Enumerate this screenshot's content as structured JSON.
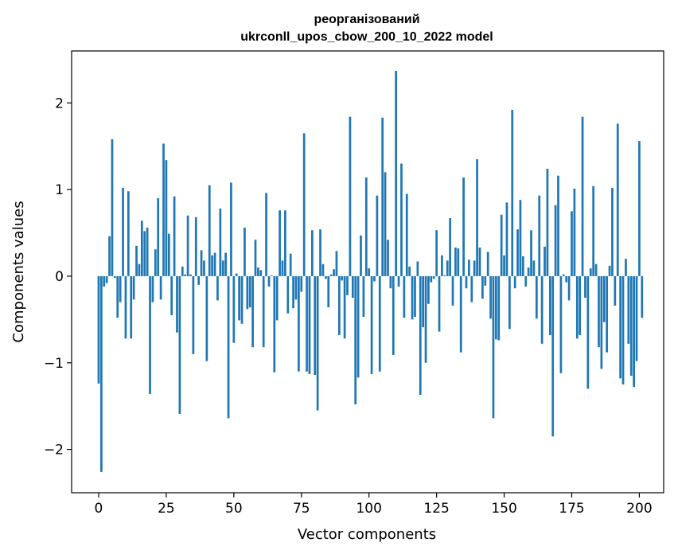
{
  "chart_data": {
    "type": "bar",
    "title_line1": "реорганізований",
    "title_line2": "ukrconll_upos_cbow_200_10_2022 model",
    "xlabel": "Vector components",
    "ylabel": "Components values",
    "xlim": [
      -10,
      209
    ],
    "ylim": [
      -2.5,
      2.6
    ],
    "xticks": [
      0,
      25,
      50,
      75,
      100,
      125,
      150,
      175,
      200
    ],
    "xtick_labels": [
      "0",
      "25",
      "50",
      "75",
      "100",
      "125",
      "150",
      "175",
      "200"
    ],
    "yticks": [
      -2,
      -1,
      0,
      1,
      2
    ],
    "ytick_labels": [
      "−2",
      "−1",
      "0",
      "1",
      "2"
    ],
    "grid": false,
    "bar_color": "#1f77b4",
    "values": [
      -1.24,
      -2.26,
      -0.12,
      -0.08,
      0.46,
      1.58,
      -0.02,
      -0.48,
      -0.3,
      1.02,
      -0.72,
      0.98,
      -0.72,
      -0.27,
      0.35,
      0.14,
      0.64,
      0.52,
      0.56,
      -1.36,
      -0.3,
      0.31,
      0.9,
      -0.27,
      1.53,
      1.34,
      0.49,
      -0.45,
      0.92,
      -0.65,
      -1.59,
      0.11,
      0.02,
      0.7,
      0.02,
      -0.9,
      0.68,
      -0.1,
      0.3,
      0.18,
      -0.98,
      1.05,
      0.24,
      0.27,
      -0.28,
      0.78,
      0.18,
      0.27,
      -1.64,
      1.08,
      -0.77,
      0.03,
      -0.51,
      -0.55,
      0.56,
      -0.38,
      -0.36,
      -0.82,
      0.42,
      0.1,
      0.07,
      -0.82,
      0.96,
      -0.12,
      0.01,
      -1.11,
      -0.51,
      0.76,
      0.18,
      0.76,
      -0.43,
      0.26,
      -0.37,
      -0.27,
      -1.1,
      -0.18,
      1.65,
      -1.1,
      -1.13,
      0.53,
      -1.14,
      -1.55,
      0.54,
      0.14,
      -0.03,
      -0.36,
      0.02,
      0.08,
      0.29,
      -0.68,
      -0.05,
      -0.72,
      -0.22,
      1.84,
      -0.25,
      -1.48,
      -1.17,
      0.47,
      -0.47,
      1.14,
      0.09,
      -1.13,
      -0.06,
      0.93,
      -1.1,
      1.83,
      1.2,
      0.42,
      -0.14,
      -0.91,
      2.37,
      -0.12,
      1.3,
      -0.48,
      0.95,
      0.11,
      -0.5,
      -0.47,
      0.17,
      -1.37,
      -0.59,
      -1.0,
      -0.32,
      -0.07,
      -0.03,
      0.53,
      -0.64,
      0.24,
      0.01,
      0.18,
      0.67,
      -0.34,
      0.33,
      0.32,
      -0.88,
      1.14,
      -0.14,
      0.19,
      -0.3,
      0.18,
      1.35,
      0.33,
      -0.26,
      -0.11,
      0.28,
      -0.49,
      -1.64,
      -0.73,
      -0.74,
      0.71,
      0.24,
      0.85,
      -0.61,
      1.92,
      -0.14,
      0.54,
      0.88,
      0.23,
      -0.12,
      0.1,
      0.53,
      0.18,
      -0.49,
      0.93,
      -0.78,
      0.34,
      1.24,
      -0.68,
      -1.85,
      0.82,
      1.16,
      -1.12,
      0.02,
      -0.07,
      -0.28,
      0.75,
      1.01,
      -0.72,
      -0.68,
      1.84,
      -0.25,
      -1.3,
      0.09,
      1.04,
      0.14,
      -0.82,
      -1.07,
      -0.53,
      -0.88,
      0.12,
      1.02,
      -0.34,
      1.76,
      -1.18,
      -1.25,
      0.2,
      -0.78,
      -1.15,
      -1.28,
      -0.98,
      1.56,
      -0.48
    ]
  }
}
